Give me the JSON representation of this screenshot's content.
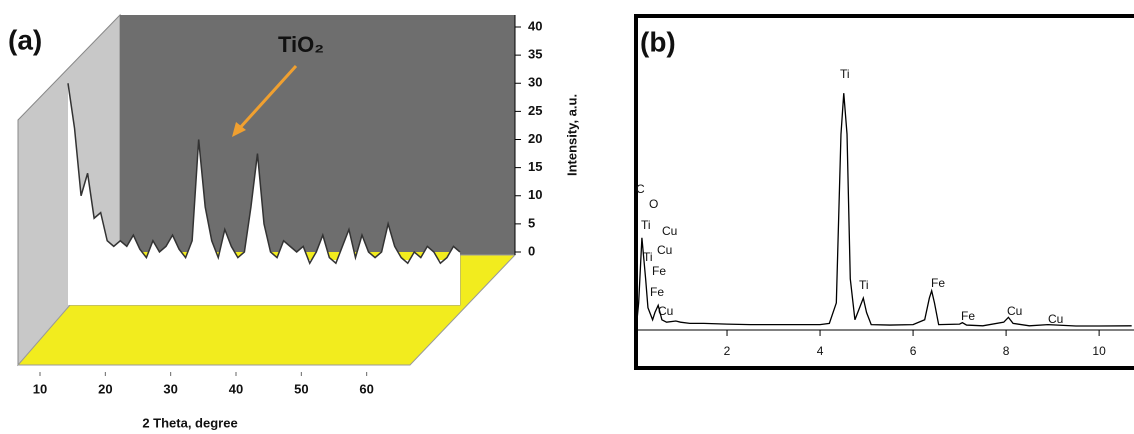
{
  "chart_data": [
    {
      "type": "line",
      "title": "(a)",
      "annotation": "TiO₂",
      "x_label": "2 Theta, degree",
      "y_label": "Intensity, a.u.",
      "x": [
        10,
        11,
        12,
        13,
        14,
        15,
        16,
        17,
        18,
        19,
        20,
        21,
        22,
        23,
        24,
        25,
        26,
        27,
        28,
        29,
        30,
        31,
        32,
        33,
        34,
        35,
        36,
        37,
        38,
        39,
        40,
        41,
        42,
        43,
        44,
        45,
        46,
        47,
        48,
        49,
        50,
        51,
        52,
        53,
        54,
        55,
        56,
        57,
        58,
        59,
        60,
        61,
        62,
        63,
        64,
        65,
        66,
        67,
        68,
        69,
        70
      ],
      "series": [
        {
          "color": "#333333",
          "values": [
            30,
            22,
            10,
            14,
            6,
            7,
            2,
            1,
            2,
            1,
            3,
            0.5,
            -1,
            2,
            0,
            1,
            3,
            0.5,
            -1,
            2,
            20,
            8,
            2,
            -1,
            4,
            1,
            -1,
            0,
            8,
            17.5,
            5,
            0,
            -1,
            2,
            1,
            0,
            1,
            -2,
            0,
            3,
            -1,
            -2,
            1,
            4,
            -1,
            3,
            0,
            -1,
            0,
            5,
            1,
            -1,
            -2,
            0,
            -1,
            1,
            0,
            -2,
            -1,
            1,
            0
          ]
        }
      ],
      "xlim": [
        10,
        70
      ],
      "ylim": [
        0,
        40
      ],
      "xticks": [
        10,
        20,
        30,
        40,
        50,
        60
      ],
      "yticks": [
        0,
        5,
        10,
        15,
        20,
        25,
        30,
        35,
        40
      ]
    },
    {
      "type": "line",
      "title": "(b)",
      "annotations": [
        "C",
        "O",
        "Ti",
        "Cu",
        "Ti",
        "Cu",
        "Fe",
        "Fe",
        "Cu",
        "Ti",
        "Ti",
        "Fe",
        "Fe",
        "Cu",
        "Cu"
      ],
      "x": [
        0.05,
        0.1,
        0.17,
        0.25,
        0.3,
        0.4,
        0.45,
        0.52,
        0.6,
        0.7,
        0.9,
        1.0,
        1.2,
        1.5,
        2,
        2.5,
        3,
        3.5,
        4,
        4.2,
        4.35,
        4.45,
        4.51,
        4.58,
        4.65,
        4.75,
        4.85,
        4.93,
        5.0,
        5.1,
        5.5,
        6.0,
        6.25,
        6.35,
        6.4,
        6.46,
        6.55,
        7.0,
        7.06,
        7.15,
        7.5,
        7.95,
        8.05,
        8.15,
        8.5,
        8.9,
        9.5,
        10,
        10.7
      ],
      "series": [
        {
          "color": "#000000",
          "values": [
            0,
            10,
            37,
            20,
            8,
            3,
            6,
            9,
            3,
            2,
            2.5,
            2,
            1.5,
            1.5,
            1.2,
            1,
            1,
            1,
            1,
            1.5,
            10,
            80,
            97,
            80,
            20,
            3,
            8,
            12,
            6,
            1,
            0.8,
            1,
            3,
            12,
            15,
            10,
            1,
            1.2,
            1.8,
            0.8,
            0.5,
            2,
            4,
            1.5,
            0.5,
            1,
            0.4,
            0.4,
            0.5
          ]
        }
      ],
      "xlim": [
        0,
        10.75
      ],
      "ylim": [
        0,
        100
      ],
      "xticks": [
        2,
        4,
        6,
        8,
        10
      ]
    }
  ]
}
